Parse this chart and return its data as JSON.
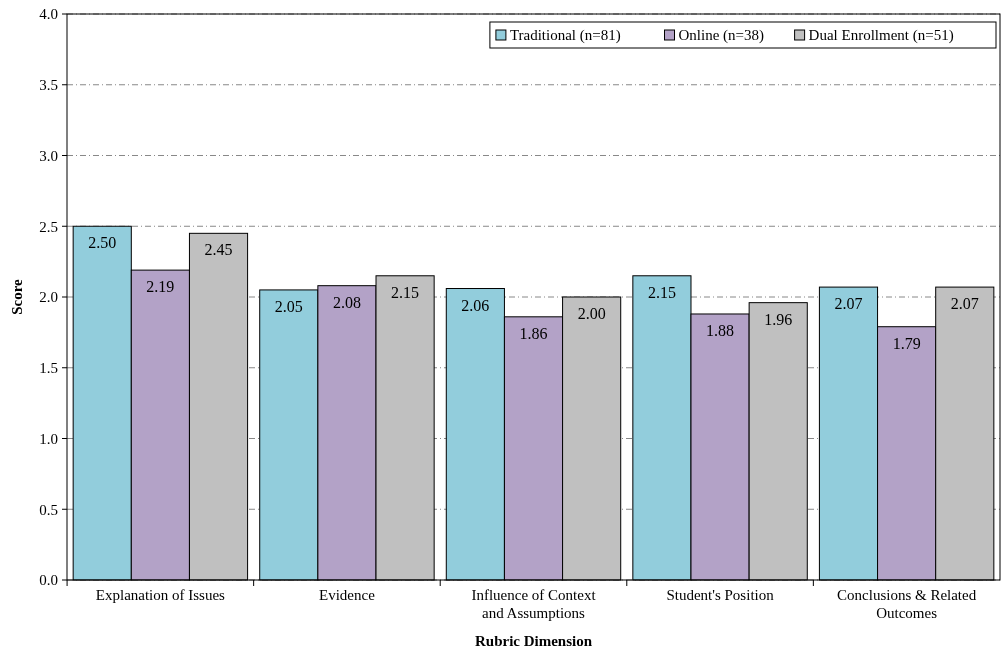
{
  "chart_data": {
    "type": "bar",
    "xlabel": "Rubric Dimension",
    "ylabel": "Score",
    "categories": [
      "Explanation of Issues",
      "Evidence",
      "Influence of Context and Assumptions",
      "Student's Position",
      "Conclusions & Related Outcomes"
    ],
    "series": [
      {
        "name": "Traditional (n=81)",
        "color": "#92cddc",
        "values": [
          2.5,
          2.05,
          2.06,
          2.15,
          2.07
        ],
        "value_labels": [
          "2.50",
          "2.05",
          "2.06",
          "2.15",
          "2.07"
        ]
      },
      {
        "name": "Online (n=38)",
        "color": "#b3a2c7",
        "values": [
          2.19,
          2.08,
          1.86,
          1.88,
          1.79
        ],
        "value_labels": [
          "2.19",
          "2.08",
          "1.86",
          "1.88",
          "1.79"
        ]
      },
      {
        "name": "Dual Enrollment (n=51)",
        "color": "#c0c0c0",
        "values": [
          2.45,
          2.15,
          2.0,
          1.96,
          2.07
        ],
        "value_labels": [
          "2.45",
          "2.15",
          "2.00",
          "1.96",
          "2.07"
        ]
      }
    ],
    "ylim": [
      0,
      4
    ],
    "yticks": [
      {
        "value": 0,
        "label": "0.0"
      },
      {
        "value": 0.5,
        "label": "0.5"
      },
      {
        "value": 1,
        "label": "1.0"
      },
      {
        "value": 1.5,
        "label": "1.5"
      },
      {
        "value": 2,
        "label": "2.0"
      },
      {
        "value": 2.5,
        "label": "2.5"
      },
      {
        "value": 3,
        "label": "3.0"
      },
      {
        "value": 3.5,
        "label": "3.5"
      },
      {
        "value": 4,
        "label": "4.0"
      }
    ],
    "grid": "y",
    "legend": "top right"
  }
}
